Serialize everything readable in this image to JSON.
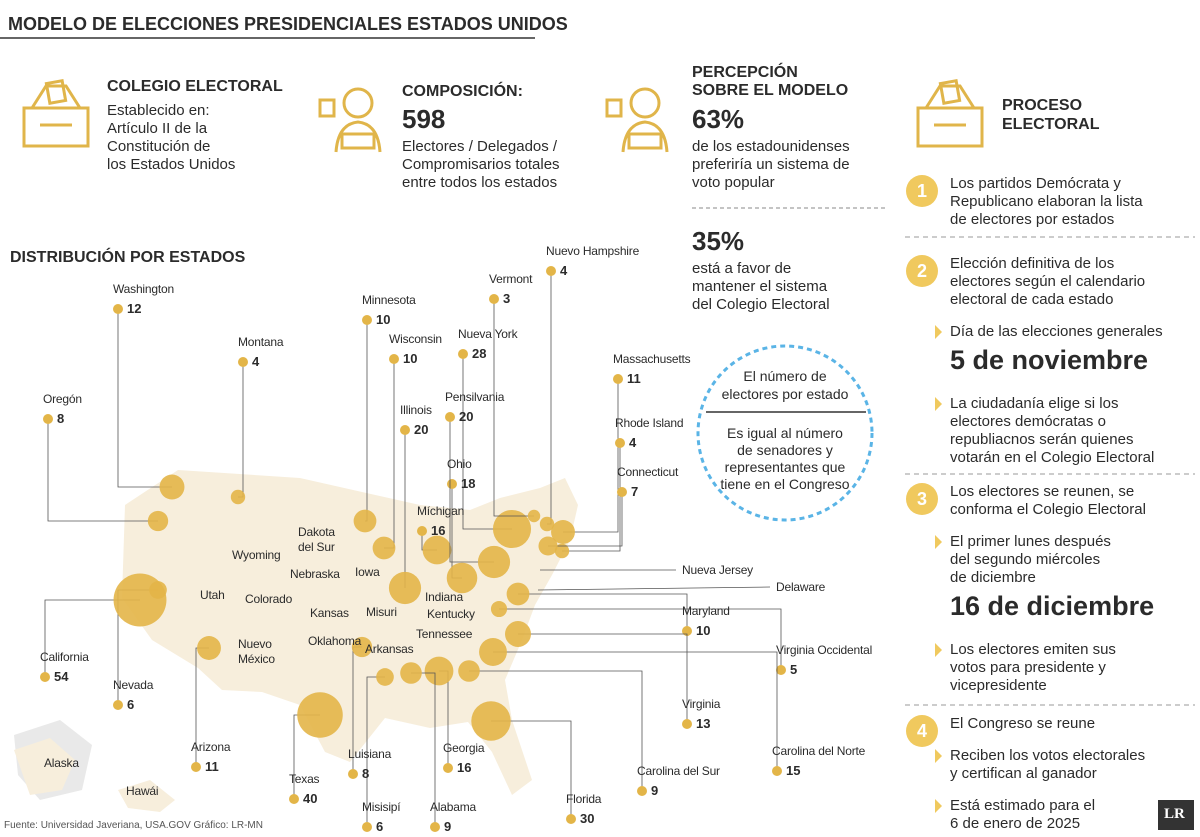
{
  "header": {
    "title": "MODELO DE ELECCIONES PRESIDENCIALES ESTADOS UNIDOS"
  },
  "colegio": {
    "title": "COLEGIO ELECTORAL",
    "lines": [
      "Establecido en:",
      "Artículo II de la",
      "Constitución de",
      "los Estados Unidos"
    ]
  },
  "composicion": {
    "title": "COMPOSICIÓN:",
    "value": 598,
    "lines": [
      "Electores / Delegados /",
      "Compromisarios totales",
      "entre todos los estados"
    ]
  },
  "percepcion": {
    "title_lines": [
      "PERCEPCIÓN",
      "SOBRE EL MODELO"
    ],
    "stats": [
      {
        "value": "63%",
        "lines": [
          "de los estadounidenses",
          "preferiría un sistema de",
          "voto popular"
        ]
      },
      {
        "value": "35%",
        "lines": [
          "está a favor de",
          "mantener el sistema",
          "del Colegio Electoral"
        ]
      }
    ]
  },
  "proceso": {
    "title_lines": [
      "PROCESO",
      "ELECTORAL"
    ],
    "steps": [
      {
        "number": 1,
        "lines": [
          "Los partidos Demócrata y",
          "Republicano elaboran la lista",
          "de electores por estados"
        ],
        "notes": []
      },
      {
        "number": 2,
        "lines": [
          "Elección definitiva de los",
          "electores según el calendario",
          "electoral de cada estado"
        ],
        "notes": [
          {
            "lines": [
              "Día de las elecciones generales"
            ],
            "date": "5 de noviembre"
          },
          {
            "lines": [
              "La ciudadanía elige si los",
              "electores demócratas o",
              "republiacnos serán quienes",
              "votarán en el Colegio Electoral"
            ]
          }
        ]
      },
      {
        "number": 3,
        "lines": [
          "Los electores se reunen, se",
          "conforma el Colegio Electoral"
        ],
        "notes": [
          {
            "lines": [
              "El primer lunes después",
              "del segundo miércoles",
              "de diciembre"
            ],
            "date": "16 de diciembre"
          },
          {
            "lines": [
              "Los electores emiten sus",
              "votos para presidente y",
              "vicepresidente"
            ]
          }
        ]
      },
      {
        "number": 4,
        "lines": [
          "El Congreso se reune"
        ],
        "notes": [
          {
            "lines": [
              "Reciben los votos electorales",
              "y certifican al ganador"
            ]
          },
          {
            "lines": [
              "Está estimado para el",
              "6 de enero de 2025"
            ]
          }
        ]
      }
    ]
  },
  "distribucion": {
    "title": "DISTRIBUCIÓN POR ESTADOS",
    "callout": {
      "top_lines": [
        "El número de",
        "electores por estado"
      ],
      "bottom_lines": [
        "Es igual al número",
        "de senadores y",
        "representantes que",
        "tiene en el Congreso"
      ]
    },
    "states": [
      {
        "name": "Washington",
        "value": 12
      },
      {
        "name": "Montana",
        "value": 4
      },
      {
        "name": "Oregón",
        "value": 8
      },
      {
        "name": "Minnesota",
        "value": 10
      },
      {
        "name": "Wisconsin",
        "value": 10
      },
      {
        "name": "Illinois",
        "value": 20
      },
      {
        "name": "Ohio",
        "value": 18
      },
      {
        "name": "Míchigan",
        "value": 16
      },
      {
        "name": "Nueva York",
        "value": 28
      },
      {
        "name": "Pensilvania",
        "value": 20
      },
      {
        "name": "Vermont",
        "value": 3
      },
      {
        "name": "Nuevo Hampshire",
        "value": 4
      },
      {
        "name": "Massachusetts",
        "value": 11
      },
      {
        "name": "Rhode Island",
        "value": 4
      },
      {
        "name": "Connecticut",
        "value": 7
      },
      {
        "name": "Maryland",
        "value": 10
      },
      {
        "name": "Virginia Occidental",
        "value": 5
      },
      {
        "name": "Virginia",
        "value": 13
      },
      {
        "name": "Carolina del Norte",
        "value": 15
      },
      {
        "name": "Carolina del Sur",
        "value": 9
      },
      {
        "name": "Florida",
        "value": 30
      },
      {
        "name": "Georgia",
        "value": 16
      },
      {
        "name": "Alabama",
        "value": 9
      },
      {
        "name": "Misisipí",
        "value": 6
      },
      {
        "name": "Luisiana",
        "value": 8
      },
      {
        "name": "Texas",
        "value": 40
      },
      {
        "name": "Arizona",
        "value": 11
      },
      {
        "name": "Nevada",
        "value": 6
      },
      {
        "name": "California",
        "value": 54
      }
    ],
    "map_labels": [
      "Wyoming",
      "Dakota del Sur",
      "Nebraska",
      "Iowa",
      "Utah",
      "Colorado",
      "Kansas",
      "Misuri",
      "Indiana",
      "Kentucky",
      "Oklahoma",
      "Arkansas",
      "Tennessee",
      "Nuevo México",
      "Alaska",
      "Hawái",
      "Nueva Jersey",
      "Delaware"
    ]
  },
  "footer": {
    "source": "Fuente: Universidad Javeriana, USA.GOV  Gráfico: LR-MN",
    "logo": "LR"
  }
}
